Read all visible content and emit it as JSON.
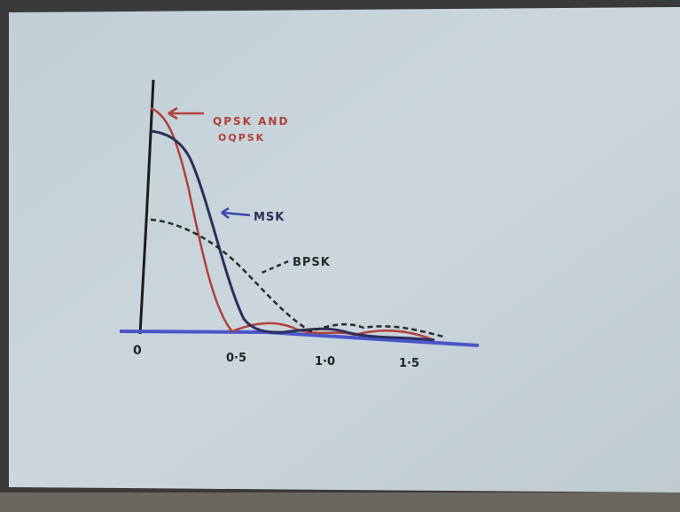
{
  "annotations": {
    "qpsk": [
      "QPSK AND",
      "OQPSK"
    ],
    "msk": "MSK",
    "bpsk": "BPSK"
  },
  "x_axis": {
    "labels": [
      "0",
      "0·5",
      "1·0",
      "1·5"
    ]
  }
}
